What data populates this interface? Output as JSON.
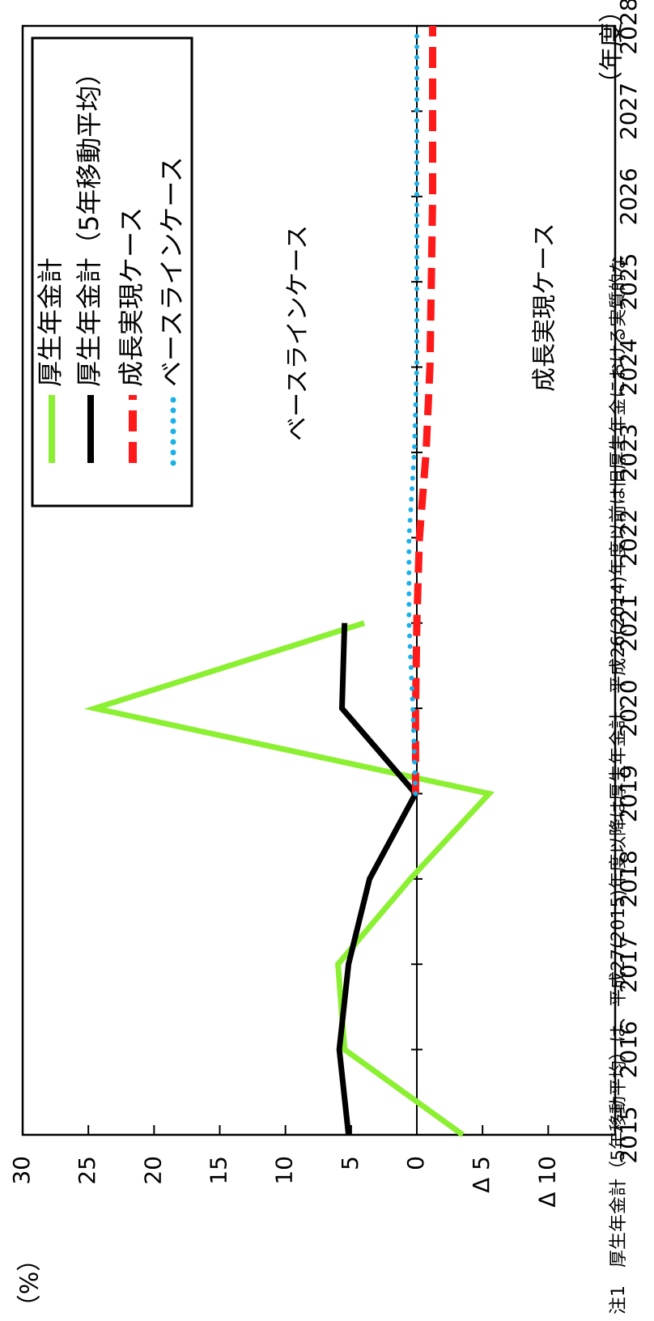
{
  "chart_data": {
    "type": "line",
    "orientation": "rotated-90-clockwise",
    "x_unit": "（年度）",
    "y_unit": "（%）",
    "x_ticks": [
      "2015",
      "2016",
      "2017",
      "2018",
      "2019",
      "2020",
      "2021",
      "2022",
      "2023",
      "2024",
      "2025",
      "2026",
      "2027",
      "2028"
    ],
    "y_ticks": [
      "30",
      "25",
      "20",
      "15",
      "10",
      "5",
      "0",
      "Δ 5",
      "Δ 10"
    ],
    "xlim": [
      2015,
      2028
    ],
    "ylim": [
      -10,
      30
    ],
    "legend_position": "top-left",
    "series": [
      {
        "name": "厚生年金計",
        "color": "#8cf032",
        "style": "solid",
        "points": [
          [
            2015,
            -3.5
          ],
          [
            2016,
            5.5
          ],
          [
            2017,
            6.0
          ],
          [
            2018,
            0.5
          ],
          [
            2019,
            -5.5
          ],
          [
            2020,
            24.5
          ],
          [
            2021,
            4.0
          ]
        ]
      },
      {
        "name": "厚生年金計（5年移動平均）",
        "color": "#000000",
        "style": "solid",
        "points": [
          [
            2015,
            5.2
          ],
          [
            2016,
            5.9
          ],
          [
            2017,
            5.2
          ],
          [
            2018,
            3.6
          ],
          [
            2019,
            0.1
          ],
          [
            2020,
            5.7
          ],
          [
            2021,
            5.5
          ]
        ]
      },
      {
        "name": "成長実現ケース",
        "color": "#ff1a1a",
        "style": "dashed",
        "points": [
          [
            2019,
            0.1
          ],
          [
            2020,
            0.1
          ],
          [
            2021,
            0.0
          ],
          [
            2022,
            -0.2
          ],
          [
            2023,
            -0.7
          ],
          [
            2024,
            -1.0
          ],
          [
            2025,
            -1.1
          ],
          [
            2026,
            -1.2
          ],
          [
            2027,
            -1.2
          ],
          [
            2028,
            -1.2
          ]
        ]
      },
      {
        "name": "ベースラインケース",
        "color": "#1ab0e8",
        "style": "dotted",
        "points": [
          [
            2019,
            0.1
          ],
          [
            2020,
            0.3
          ],
          [
            2021,
            0.6
          ],
          [
            2022,
            0.6
          ],
          [
            2023,
            0.2
          ],
          [
            2024,
            0.0
          ],
          [
            2025,
            0.0
          ],
          [
            2026,
            0.0
          ],
          [
            2027,
            0.0
          ],
          [
            2028,
            0.0
          ]
        ]
      }
    ],
    "annotations": [
      {
        "text": "ベースラインケース",
        "x": 2024.4,
        "y": 9.0
      },
      {
        "text": "成長実現ケース",
        "x": 2024.7,
        "y": -9.8
      }
    ],
    "note": "注1　厚生年金計（5年移動平均）は、平成27(2015)年度以降は厚生年金計、平成26(2014)年度以前は旧厚生年金における実質的な"
  }
}
